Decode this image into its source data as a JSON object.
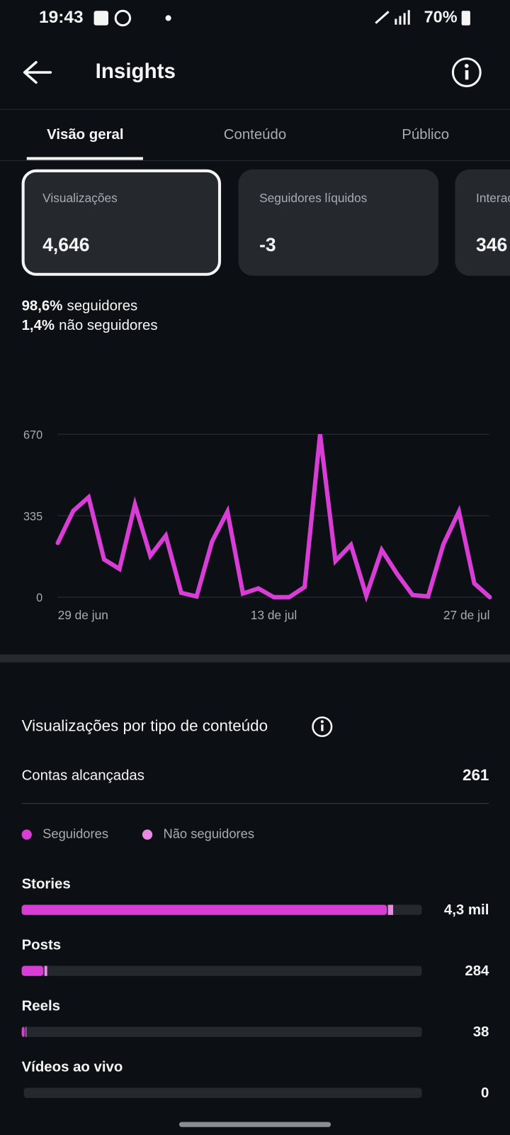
{
  "status_bar": {
    "time": "19:43",
    "battery": "70%"
  },
  "header": {
    "title": "Insights"
  },
  "tabs": [
    "Visão geral",
    "Conteúdo",
    "Público"
  ],
  "cards": [
    {
      "label": "Visualizações",
      "value": "4,646"
    },
    {
      "label": "Seguidores líquidos",
      "value": "-3"
    },
    {
      "label": "Interações",
      "value": "346"
    }
  ],
  "audience_split": [
    {
      "share": "98,6%",
      "label": "seguidores"
    },
    {
      "share": "1,4%",
      "label": "não seguidores"
    }
  ],
  "chart_data": {
    "type": "line",
    "categories": [
      "29 de jun",
      null,
      null,
      null,
      null,
      null,
      null,
      null,
      null,
      null,
      null,
      null,
      null,
      null,
      "13 de jul",
      null,
      null,
      null,
      null,
      null,
      null,
      null,
      null,
      null,
      null,
      null,
      null,
      null,
      "27 de jul"
    ],
    "values": [
      223,
      355,
      411,
      155,
      116,
      381,
      170,
      253,
      18,
      3,
      229,
      352,
      15,
      36,
      0,
      0,
      42,
      670,
      149,
      215,
      6,
      194,
      95,
      9,
      3,
      218,
      352,
      57,
      0
    ],
    "color": "#d83ed6",
    "ylim": [
      0,
      670
    ],
    "yticks": [
      0,
      335,
      670
    ],
    "grid": true
  },
  "breakdown": {
    "title": "Visualizações por tipo de conteúdo",
    "reach_label": "Contas alcançadas",
    "reach_value": "261",
    "legend": [
      {
        "name": "Seguidores",
        "color": "#d83ed6"
      },
      {
        "name": "Não seguidores",
        "color": "#e88ce3"
      }
    ],
    "xlim": [
      0,
      4646
    ],
    "rows": [
      {
        "name": "Stories",
        "followers": 4240,
        "non_followers": 60,
        "total": 4300,
        "total_label": "4,3 mil"
      },
      {
        "name": "Posts",
        "followers": 252,
        "non_followers": 32,
        "total": 284
      },
      {
        "name": "Reels",
        "followers": 34,
        "non_followers": 4,
        "total": 38
      },
      {
        "name": "Vídeos ao vivo",
        "followers": 0,
        "non_followers": 0,
        "total": 0
      }
    ]
  }
}
